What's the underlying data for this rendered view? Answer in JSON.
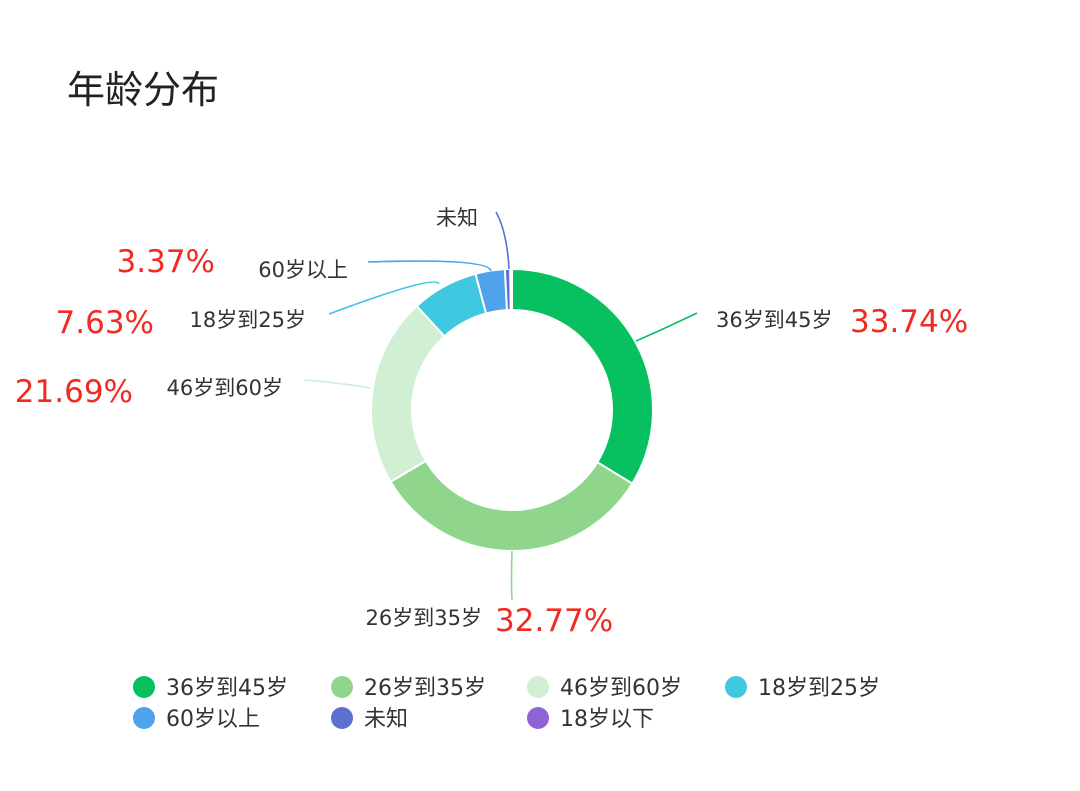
{
  "chart_data": {
    "type": "pie",
    "variant": "donut",
    "title": "年龄分布",
    "legend_position": "bottom",
    "slices": [
      {
        "label": "36岁到45岁",
        "value": 33.74,
        "percent_label": "33.74%",
        "color": "#07c160"
      },
      {
        "label": "26岁到35岁",
        "value": 32.77,
        "percent_label": "32.77%",
        "color": "#8fd68c"
      },
      {
        "label": "46岁到60岁",
        "value": 21.69,
        "percent_label": "21.69%",
        "color": "#d0efd3"
      },
      {
        "label": "18岁到25岁",
        "value": 7.63,
        "percent_label": "7.63%",
        "color": "#40c8e0"
      },
      {
        "label": "60岁以上",
        "value": 3.37,
        "percent_label": "3.37%",
        "color": "#4ea3ea"
      },
      {
        "label": "未知",
        "value": 0.6,
        "percent_label": "",
        "color": "#5b70d0"
      },
      {
        "label": "18岁以下",
        "value": 0.2,
        "percent_label": "",
        "color": "#8e63d6"
      }
    ]
  }
}
